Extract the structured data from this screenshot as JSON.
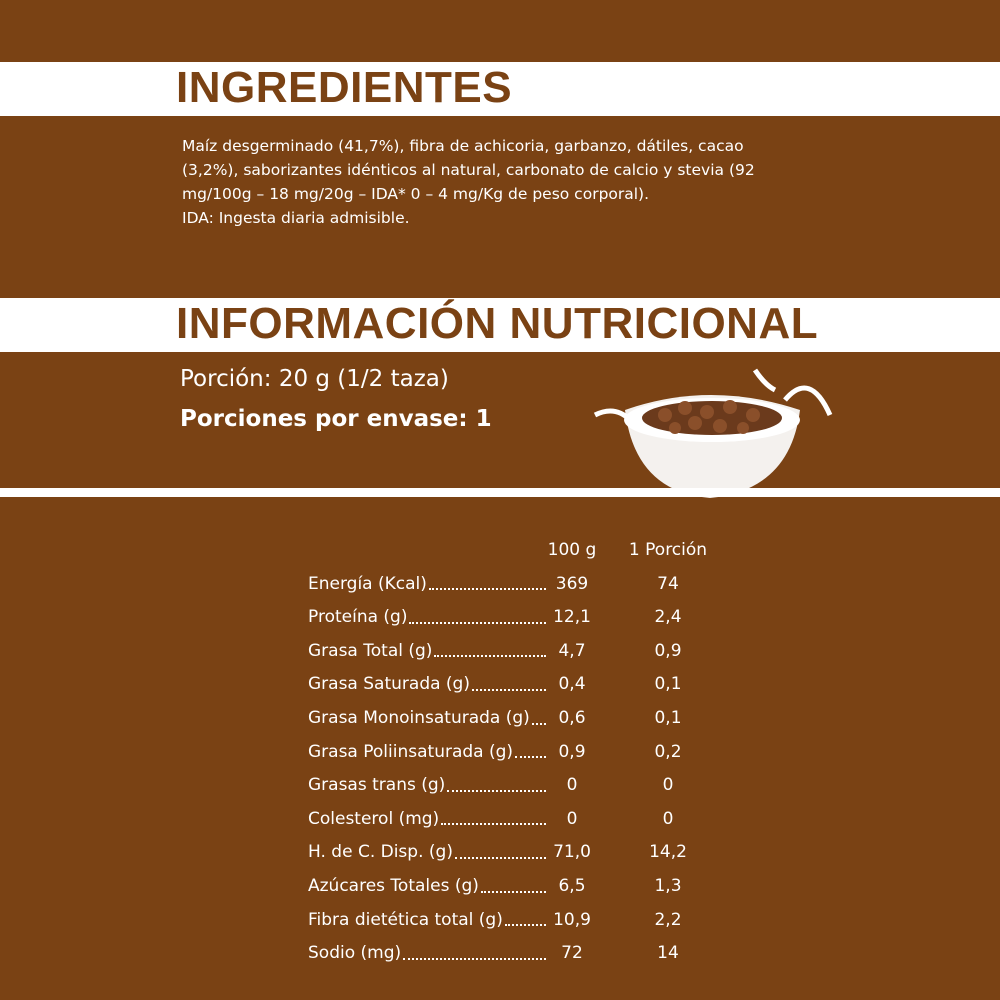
{
  "ingredients": {
    "title": "INGREDIENTES",
    "text": [
      "Maíz desgerminado (41,7%), fibra de achicoria, garbanzo, dátiles, cacao",
      "(3,2%), saborizantes idénticos al natural, carbonato de calcio y stevia (92",
      "mg/100g – 18 mg/20g – IDA* 0 – 4 mg/Kg de peso corporal).",
      "IDA: Ingesta diaria admisible."
    ]
  },
  "nutrition": {
    "title": "INFORMACIÓN NUTRICIONAL",
    "serving": "Porción: 20 g (1/2 taza)",
    "servings_per_pack": "Porciones por envase: 1",
    "table": {
      "header": [
        "100 g",
        "1 Porción"
      ],
      "rows": [
        [
          "Energía (Kcal)",
          "369",
          "74"
        ],
        [
          "Proteína (g)",
          "12,1",
          "2,4"
        ],
        [
          "Grasa Total (g)",
          "4,7",
          "0,9"
        ],
        [
          "Grasa Saturada (g)",
          "0,4",
          "0,1"
        ],
        [
          "Grasa Monoinsaturada (g)",
          "0,6",
          "0,1"
        ],
        [
          "Grasa Poliinsaturada (g)",
          "0,9",
          "0,2"
        ],
        [
          "Grasas trans (g)",
          "0",
          "0"
        ],
        [
          "Colesterol (mg)",
          "0",
          "0"
        ],
        [
          "H. de C. Disp. (g)",
          "71,0",
          "14,2"
        ],
        [
          "Azúcares Totales (g)",
          "6,5",
          "1,3"
        ],
        [
          "Fibra dietética total (g)",
          "10,9",
          "2,2"
        ],
        [
          "Sodio (mg)",
          "72",
          "14"
        ]
      ]
    }
  }
}
